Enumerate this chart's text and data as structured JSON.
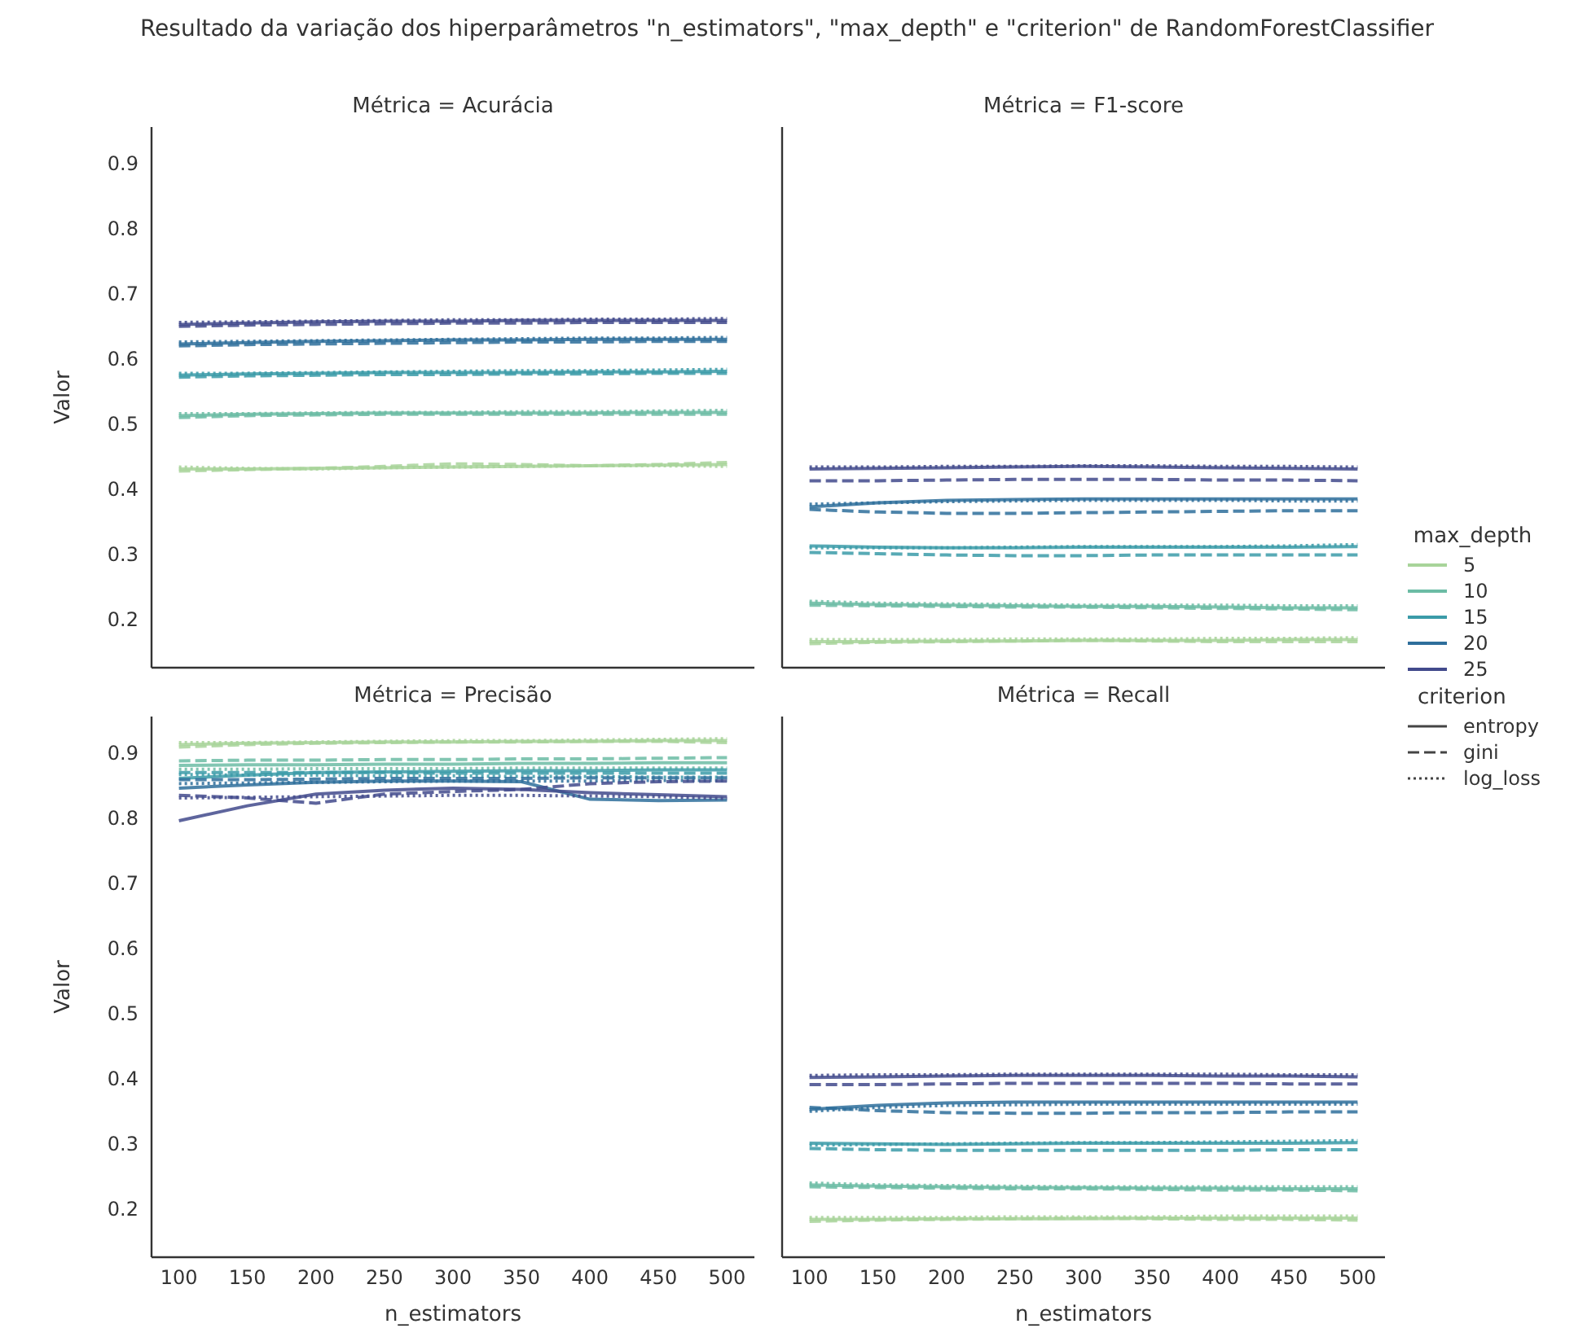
{
  "chart_data": [
    {
      "type": "line",
      "title": "Métrica = Acurácia",
      "annotations": [
        "Resultado da variação dos hiperparâmetros \"n_estimators\", \"max_depth\" e \"criterion\" de RandomForestClassifier"
      ],
      "ylabel": "Valor",
      "x": [
        100,
        150,
        200,
        250,
        300,
        350,
        400,
        450,
        500
      ],
      "xlim": [
        80,
        520
      ],
      "xticks": [
        100,
        150,
        200,
        250,
        300,
        350,
        400,
        450,
        500
      ],
      "ylim": [
        0.125,
        0.955
      ],
      "yticks": [
        0.2,
        0.3,
        0.4,
        0.5,
        0.6,
        0.7,
        0.8,
        0.9
      ],
      "tick_labels": "y",
      "grid": false,
      "series": [
        {
          "color": "#a8d49a",
          "line_style": "solid",
          "values": [
            0.43,
            0.43,
            0.431,
            0.432,
            0.433,
            0.434,
            0.435,
            0.436,
            0.437
          ]
        },
        {
          "color": "#a8d49a",
          "line_style": "dashed",
          "values": [
            0.427,
            0.429,
            0.431,
            0.434,
            0.438,
            0.437,
            0.435,
            0.437,
            0.44
          ]
        },
        {
          "color": "#a8d49a",
          "line_style": "dotted",
          "values": [
            0.433,
            0.431,
            0.43,
            0.432,
            0.433,
            0.434,
            0.435,
            0.435,
            0.434
          ]
        },
        {
          "color": "#6cbca5",
          "line_style": "solid",
          "values": [
            0.512,
            0.514,
            0.515,
            0.516,
            0.516,
            0.516,
            0.516,
            0.517,
            0.517
          ]
        },
        {
          "color": "#6cbca5",
          "line_style": "dashed",
          "values": [
            0.509,
            0.512,
            0.513,
            0.514,
            0.514,
            0.514,
            0.514,
            0.514,
            0.514
          ]
        },
        {
          "color": "#6cbca5",
          "line_style": "dotted",
          "values": [
            0.515,
            0.515,
            0.516,
            0.517,
            0.517,
            0.518,
            0.518,
            0.519,
            0.52
          ]
        },
        {
          "color": "#3b9ba8",
          "line_style": "solid",
          "values": [
            0.574,
            0.576,
            0.577,
            0.578,
            0.578,
            0.578,
            0.579,
            0.579,
            0.58
          ]
        },
        {
          "color": "#3b9ba8",
          "line_style": "dashed",
          "values": [
            0.571,
            0.573,
            0.574,
            0.575,
            0.575,
            0.576,
            0.576,
            0.577,
            0.577
          ]
        },
        {
          "color": "#3b9ba8",
          "line_style": "dotted",
          "values": [
            0.577,
            0.577,
            0.578,
            0.579,
            0.58,
            0.581,
            0.581,
            0.582,
            0.583
          ]
        },
        {
          "color": "#2e6e9b",
          "line_style": "solid",
          "values": [
            0.622,
            0.624,
            0.626,
            0.627,
            0.628,
            0.628,
            0.629,
            0.629,
            0.629
          ]
        },
        {
          "color": "#2e6e9b",
          "line_style": "dashed",
          "values": [
            0.619,
            0.621,
            0.622,
            0.623,
            0.624,
            0.625,
            0.625,
            0.626,
            0.626
          ]
        },
        {
          "color": "#2e6e9b",
          "line_style": "dotted",
          "values": [
            0.625,
            0.626,
            0.627,
            0.628,
            0.629,
            0.63,
            0.631,
            0.631,
            0.632
          ]
        },
        {
          "color": "#424a8c",
          "line_style": "solid",
          "values": [
            0.652,
            0.654,
            0.656,
            0.657,
            0.657,
            0.658,
            0.658,
            0.658,
            0.658
          ]
        },
        {
          "color": "#424a8c",
          "line_style": "dashed",
          "values": [
            0.649,
            0.651,
            0.652,
            0.653,
            0.654,
            0.654,
            0.655,
            0.655,
            0.655
          ]
        },
        {
          "color": "#424a8c",
          "line_style": "dotted",
          "values": [
            0.655,
            0.656,
            0.657,
            0.658,
            0.659,
            0.659,
            0.66,
            0.66,
            0.661
          ]
        }
      ]
    },
    {
      "type": "line",
      "title": "Métrica = F1-score",
      "x": [
        100,
        150,
        200,
        250,
        300,
        350,
        400,
        450,
        500
      ],
      "xlim": [
        80,
        520
      ],
      "xticks": [
        100,
        150,
        200,
        250,
        300,
        350,
        400,
        450,
        500
      ],
      "ylim": [
        0.125,
        0.955
      ],
      "yticks": [
        0.2,
        0.3,
        0.4,
        0.5,
        0.6,
        0.7,
        0.8,
        0.9
      ],
      "tick_labels": false,
      "grid": false,
      "legend": "right",
      "legend_title": "max_depth",
      "annotations": [
        "criterion",
        "entropy",
        "gini",
        "log_loss"
      ],
      "series": [
        {
          "name": "5",
          "color": "#a8d49a",
          "line_style": "solid",
          "values": [
            0.165,
            0.165,
            0.166,
            0.166,
            0.167,
            0.167,
            0.167,
            0.168,
            0.168
          ]
        },
        {
          "color": "#a8d49a",
          "line_style": "dashed",
          "values": [
            0.162,
            0.164,
            0.165,
            0.166,
            0.167,
            0.166,
            0.165,
            0.165,
            0.165
          ]
        },
        {
          "color": "#a8d49a",
          "line_style": "dotted",
          "values": [
            0.168,
            0.168,
            0.168,
            0.169,
            0.169,
            0.169,
            0.17,
            0.17,
            0.171
          ]
        },
        {
          "name": "10",
          "color": "#6cbca5",
          "line_style": "solid",
          "values": [
            0.224,
            0.222,
            0.221,
            0.22,
            0.219,
            0.219,
            0.218,
            0.217,
            0.217
          ]
        },
        {
          "color": "#6cbca5",
          "line_style": "dashed",
          "values": [
            0.221,
            0.22,
            0.219,
            0.218,
            0.218,
            0.217,
            0.216,
            0.215,
            0.214
          ]
        },
        {
          "color": "#6cbca5",
          "line_style": "dotted",
          "values": [
            0.227,
            0.224,
            0.223,
            0.222,
            0.221,
            0.221,
            0.221,
            0.22,
            0.22
          ]
        },
        {
          "name": "15",
          "color": "#3b9ba8",
          "line_style": "solid",
          "values": [
            0.312,
            0.31,
            0.309,
            0.309,
            0.31,
            0.31,
            0.31,
            0.31,
            0.311
          ]
        },
        {
          "color": "#3b9ba8",
          "line_style": "dashed",
          "values": [
            0.302,
            0.3,
            0.298,
            0.297,
            0.297,
            0.298,
            0.298,
            0.298,
            0.298
          ]
        },
        {
          "color": "#3b9ba8",
          "line_style": "dotted",
          "values": [
            0.309,
            0.309,
            0.309,
            0.31,
            0.311,
            0.311,
            0.311,
            0.312,
            0.314
          ]
        },
        {
          "name": "20",
          "color": "#2e6e9b",
          "line_style": "solid",
          "values": [
            0.372,
            0.378,
            0.382,
            0.383,
            0.384,
            0.384,
            0.384,
            0.384,
            0.384
          ]
        },
        {
          "color": "#2e6e9b",
          "line_style": "dashed",
          "values": [
            0.368,
            0.364,
            0.362,
            0.362,
            0.363,
            0.364,
            0.365,
            0.366,
            0.366
          ]
        },
        {
          "color": "#2e6e9b",
          "line_style": "dotted",
          "values": [
            0.376,
            0.378,
            0.38,
            0.381,
            0.382,
            0.382,
            0.382,
            0.381,
            0.381
          ]
        },
        {
          "name": "25",
          "color": "#424a8c",
          "line_style": "solid",
          "values": [
            0.43,
            0.431,
            0.432,
            0.433,
            0.434,
            0.433,
            0.432,
            0.431,
            0.43
          ]
        },
        {
          "color": "#424a8c",
          "line_style": "dashed",
          "values": [
            0.412,
            0.412,
            0.413,
            0.414,
            0.414,
            0.414,
            0.413,
            0.413,
            0.412
          ]
        },
        {
          "color": "#424a8c",
          "line_style": "dotted",
          "values": [
            0.433,
            0.433,
            0.434,
            0.434,
            0.435,
            0.435,
            0.434,
            0.434,
            0.433
          ]
        }
      ]
    },
    {
      "type": "line",
      "title": "Métrica = Precisão",
      "xlabel": "n_estimators",
      "ylabel": "Valor",
      "x": [
        100,
        150,
        200,
        250,
        300,
        350,
        400,
        450,
        500
      ],
      "xlim": [
        80,
        520
      ],
      "xticks": [
        100,
        150,
        200,
        250,
        300,
        350,
        400,
        450,
        500
      ],
      "ylim": [
        0.125,
        0.955
      ],
      "yticks": [
        0.2,
        0.3,
        0.4,
        0.5,
        0.6,
        0.7,
        0.8,
        0.9
      ],
      "grid": false,
      "series": [
        {
          "color": "#a8d49a",
          "line_style": "solid",
          "values": [
            0.912,
            0.914,
            0.915,
            0.916,
            0.916,
            0.917,
            0.917,
            0.918,
            0.918
          ]
        },
        {
          "color": "#a8d49a",
          "line_style": "dashed",
          "values": [
            0.908,
            0.912,
            0.914,
            0.915,
            0.916,
            0.916,
            0.917,
            0.917,
            0.915
          ]
        },
        {
          "color": "#a8d49a",
          "line_style": "dotted",
          "values": [
            0.915,
            0.915,
            0.916,
            0.917,
            0.918,
            0.918,
            0.919,
            0.92,
            0.921
          ]
        },
        {
          "color": "#6cbca5",
          "line_style": "solid",
          "values": [
            0.88,
            0.881,
            0.881,
            0.882,
            0.882,
            0.883,
            0.883,
            0.884,
            0.884
          ]
        },
        {
          "color": "#6cbca5",
          "line_style": "dashed",
          "values": [
            0.887,
            0.888,
            0.888,
            0.889,
            0.889,
            0.89,
            0.89,
            0.891,
            0.892
          ]
        },
        {
          "color": "#6cbca5",
          "line_style": "dotted",
          "values": [
            0.874,
            0.874,
            0.875,
            0.875,
            0.875,
            0.876,
            0.876,
            0.876,
            0.876
          ]
        },
        {
          "color": "#3b9ba8",
          "line_style": "solid",
          "values": [
            0.86,
            0.865,
            0.869,
            0.87,
            0.871,
            0.872,
            0.872,
            0.873,
            0.873
          ]
        },
        {
          "color": "#3b9ba8",
          "line_style": "dashed",
          "values": [
            0.869,
            0.869,
            0.869,
            0.869,
            0.868,
            0.868,
            0.868,
            0.868,
            0.868
          ]
        },
        {
          "color": "#3b9ba8",
          "line_style": "dotted",
          "values": [
            0.866,
            0.865,
            0.865,
            0.864,
            0.864,
            0.863,
            0.863,
            0.862,
            0.862
          ]
        },
        {
          "color": "#2e6e9b",
          "line_style": "solid",
          "values": [
            0.845,
            0.85,
            0.854,
            0.856,
            0.856,
            0.855,
            0.828,
            0.826,
            0.827
          ]
        },
        {
          "color": "#2e6e9b",
          "line_style": "dashed",
          "values": [
            0.858,
            0.858,
            0.859,
            0.86,
            0.86,
            0.86,
            0.861,
            0.861,
            0.861
          ]
        },
        {
          "color": "#2e6e9b",
          "line_style": "dotted",
          "values": [
            0.852,
            0.853,
            0.854,
            0.855,
            0.856,
            0.856,
            0.856,
            0.857,
            0.857
          ]
        },
        {
          "color": "#424a8c",
          "line_style": "solid",
          "values": [
            0.795,
            0.818,
            0.836,
            0.842,
            0.845,
            0.843,
            0.838,
            0.835,
            0.832
          ]
        },
        {
          "color": "#424a8c",
          "line_style": "dashed",
          "values": [
            0.834,
            0.83,
            0.822,
            0.836,
            0.84,
            0.843,
            0.852,
            0.855,
            0.856
          ]
        },
        {
          "color": "#424a8c",
          "line_style": "dotted",
          "values": [
            0.83,
            0.831,
            0.832,
            0.833,
            0.834,
            0.834,
            0.833,
            0.832,
            0.829
          ]
        }
      ]
    },
    {
      "type": "line",
      "title": "Métrica = Recall",
      "xlabel": "n_estimators",
      "x": [
        100,
        150,
        200,
        250,
        300,
        350,
        400,
        450,
        500
      ],
      "xlim": [
        80,
        520
      ],
      "xticks": [
        100,
        150,
        200,
        250,
        300,
        350,
        400,
        450,
        500
      ],
      "ylim": [
        0.125,
        0.955
      ],
      "yticks": [
        0.2,
        0.3,
        0.4,
        0.5,
        0.6,
        0.7,
        0.8,
        0.9
      ],
      "tick_labels": "x",
      "grid": false,
      "series": [
        {
          "color": "#a8d49a",
          "line_style": "solid",
          "values": [
            0.183,
            0.183,
            0.184,
            0.184,
            0.184,
            0.185,
            0.185,
            0.185,
            0.185
          ]
        },
        {
          "color": "#a8d49a",
          "line_style": "dashed",
          "values": [
            0.18,
            0.182,
            0.183,
            0.184,
            0.185,
            0.184,
            0.183,
            0.183,
            0.182
          ]
        },
        {
          "color": "#a8d49a",
          "line_style": "dotted",
          "values": [
            0.186,
            0.186,
            0.186,
            0.187,
            0.187,
            0.187,
            0.188,
            0.188,
            0.188
          ]
        },
        {
          "color": "#6cbca5",
          "line_style": "solid",
          "values": [
            0.236,
            0.234,
            0.233,
            0.232,
            0.232,
            0.231,
            0.231,
            0.23,
            0.23
          ]
        },
        {
          "color": "#6cbca5",
          "line_style": "dashed",
          "values": [
            0.233,
            0.232,
            0.231,
            0.23,
            0.23,
            0.229,
            0.228,
            0.228,
            0.227
          ]
        },
        {
          "color": "#6cbca5",
          "line_style": "dotted",
          "values": [
            0.239,
            0.236,
            0.235,
            0.234,
            0.233,
            0.233,
            0.233,
            0.233,
            0.233
          ]
        },
        {
          "color": "#3b9ba8",
          "line_style": "solid",
          "values": [
            0.3,
            0.299,
            0.298,
            0.299,
            0.3,
            0.3,
            0.3,
            0.3,
            0.301
          ]
        },
        {
          "color": "#3b9ba8",
          "line_style": "dashed",
          "values": [
            0.292,
            0.29,
            0.289,
            0.289,
            0.289,
            0.289,
            0.289,
            0.29,
            0.29
          ]
        },
        {
          "color": "#3b9ba8",
          "line_style": "dotted",
          "values": [
            0.297,
            0.298,
            0.299,
            0.3,
            0.301,
            0.301,
            0.302,
            0.303,
            0.304
          ]
        },
        {
          "color": "#2e6e9b",
          "line_style": "solid",
          "values": [
            0.352,
            0.358,
            0.362,
            0.363,
            0.363,
            0.363,
            0.363,
            0.363,
            0.363
          ]
        },
        {
          "color": "#2e6e9b",
          "line_style": "dashed",
          "values": [
            0.355,
            0.35,
            0.347,
            0.346,
            0.346,
            0.347,
            0.347,
            0.348,
            0.348
          ]
        },
        {
          "color": "#2e6e9b",
          "line_style": "dotted",
          "values": [
            0.349,
            0.355,
            0.358,
            0.359,
            0.36,
            0.36,
            0.36,
            0.36,
            0.36
          ]
        },
        {
          "color": "#424a8c",
          "line_style": "solid",
          "values": [
            0.401,
            0.402,
            0.403,
            0.404,
            0.404,
            0.404,
            0.403,
            0.403,
            0.402
          ]
        },
        {
          "color": "#424a8c",
          "line_style": "dashed",
          "values": [
            0.39,
            0.39,
            0.391,
            0.392,
            0.392,
            0.392,
            0.392,
            0.391,
            0.391
          ]
        },
        {
          "color": "#424a8c",
          "line_style": "dotted",
          "values": [
            0.404,
            0.405,
            0.405,
            0.406,
            0.406,
            0.406,
            0.406,
            0.405,
            0.405
          ]
        }
      ]
    }
  ]
}
